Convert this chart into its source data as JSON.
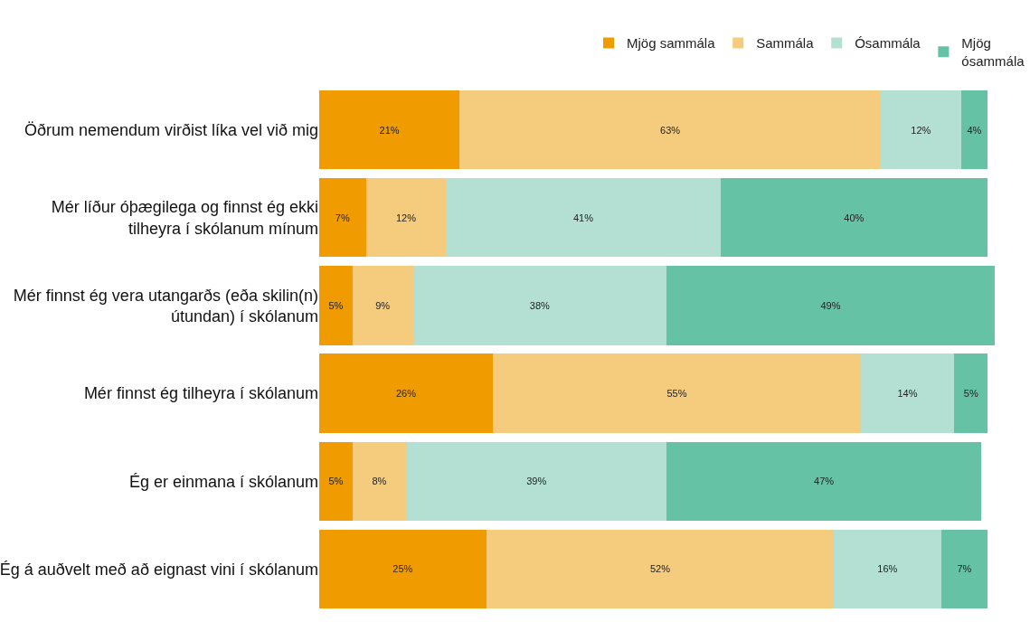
{
  "chart_data": {
    "type": "bar",
    "orientation": "horizontal",
    "stacked": true,
    "legend": "top right",
    "tick_labels": "y",
    "categories": [
      "Öðrum nemendum virðist líka vel við mig",
      "Mér líður óþægilega og finnst ég ekki tilheyra í skólanum mínum",
      "Mér finnst ég vera utangarðs (eða skilin(n) útundan) í skólanum",
      "Mér finnst ég tilheyra í skólanum",
      "Ég er einmana í skólanum",
      "Ég á auðvelt með að eignast vini í skólanum"
    ],
    "series": [
      {
        "name": "Mjög sammála",
        "color": "#f09c00",
        "values": [
          21,
          7,
          5,
          26,
          5,
          25
        ],
        "value_labels": [
          "21%",
          "7%",
          "5%",
          "26%",
          "5%",
          "25%"
        ]
      },
      {
        "name": "Sammála",
        "color": "#f5cb7d",
        "values": [
          63,
          12,
          9,
          55,
          8,
          52
        ],
        "value_labels": [
          "63%",
          "12%",
          "9%",
          "55%",
          "8%",
          "52%"
        ]
      },
      {
        "name": "Ósammála",
        "color": "#b3e0d3",
        "values": [
          12,
          41,
          38,
          14,
          39,
          16
        ],
        "value_labels": [
          "12%",
          "41%",
          "38%",
          "14%",
          "39%",
          "16%"
        ]
      },
      {
        "name": "Mjög ósammála",
        "color": "#66c2a5",
        "values": [
          4,
          40,
          49,
          5,
          47,
          7
        ],
        "value_labels": [
          "4%",
          "40%",
          "49%",
          "5%",
          "47%",
          "7%"
        ]
      }
    ]
  }
}
